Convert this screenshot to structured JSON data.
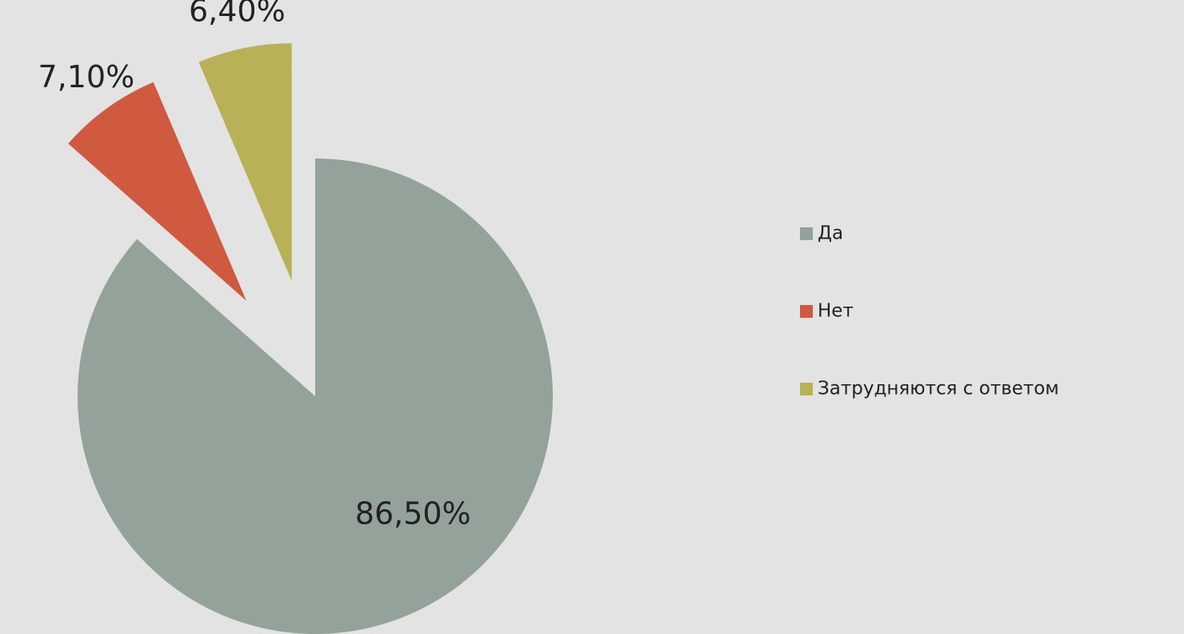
{
  "chart_data": {
    "type": "pie",
    "categories": [
      "Да",
      "Нет",
      "Затрудняются с ответом"
    ],
    "values": [
      86.5,
      7.1,
      6.4
    ],
    "value_labels": [
      "86,50%",
      "7,10%",
      "6,40%"
    ],
    "colors": [
      "#94a39a",
      "#d05a40",
      "#b8b158"
    ],
    "legend": "right"
  }
}
